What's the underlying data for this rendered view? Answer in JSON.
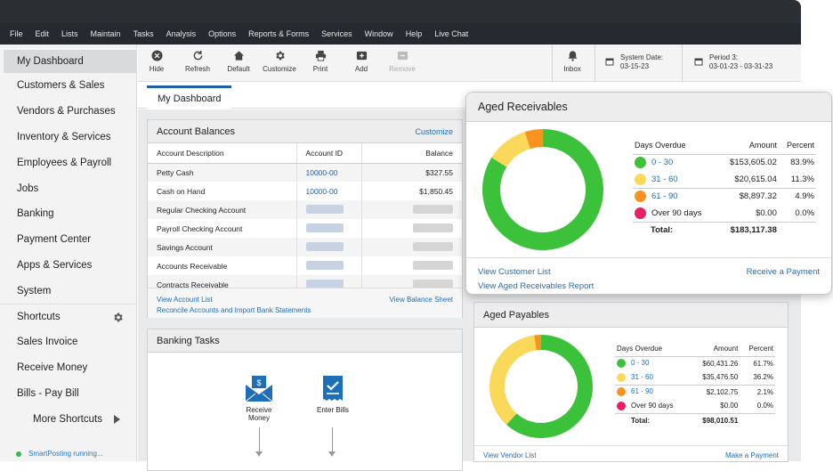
{
  "menu": [
    "File",
    "Edit",
    "Lists",
    "Maintain",
    "Tasks",
    "Analysis",
    "Options",
    "Reports & Forms",
    "Services",
    "Window",
    "Help",
    "Live Chat"
  ],
  "sidebar": {
    "items": [
      "My Dashboard",
      "Customers & Sales",
      "Vendors & Purchases",
      "Inventory & Services",
      "Employees & Payroll",
      "Jobs",
      "Banking",
      "Payment Center",
      "Apps & Services",
      "System"
    ],
    "shortcuts_label": "Shortcuts",
    "shortcuts": [
      "Sales Invoice",
      "Receive Money",
      "Bills - Pay Bill"
    ],
    "more_label": "More Shortcuts",
    "status": "SmartPosting running..."
  },
  "toolbar": {
    "buttons": [
      "Hide",
      "Refresh",
      "Default",
      "Customize",
      "Print",
      "Add",
      "Remove"
    ],
    "inbox": "Inbox",
    "system_date_label": "System Date:",
    "system_date": "03-15-23",
    "period_label": "Period 3:",
    "period": "03-01-23 - 03-31-23"
  },
  "tab": "My Dashboard",
  "account_balances": {
    "title": "Account Balances",
    "customize": "Customize",
    "headers": [
      "Account Description",
      "Account ID",
      "Balance"
    ],
    "rows": [
      {
        "desc": "Petty Cash",
        "id": "10000-00",
        "bal": "$327.55"
      },
      {
        "desc": "Cash on Hand",
        "id": "10000-00",
        "bal": "$1,850.45"
      },
      {
        "desc": "Regular Checking Account",
        "id": "",
        "bal": ""
      },
      {
        "desc": "Payroll Checking Account",
        "id": "",
        "bal": ""
      },
      {
        "desc": "Savings Account",
        "id": "",
        "bal": ""
      },
      {
        "desc": "Accounts Receivable",
        "id": "",
        "bal": ""
      },
      {
        "desc": "Contracts Receivable",
        "id": "",
        "bal": ""
      }
    ],
    "view_list": "View Account List",
    "view_sheet": "View Balance Sheet",
    "reconcile": "Reconcile Accounts and Import Bank Statements"
  },
  "banking_tasks": {
    "title": "Banking Tasks",
    "receive_money": "Receive Money",
    "enter_bills": "Enter Bills"
  },
  "aged_receivables": {
    "title": "Aged Receivables",
    "headers": [
      "Days Overdue",
      "Amount",
      "Percent"
    ],
    "rows": [
      {
        "label": "0 - 30",
        "amount": "$153,605.02",
        "percent": "83.9%",
        "color": "#3cc13b"
      },
      {
        "label": "31 - 60",
        "amount": "$20,615.04",
        "percent": "11.3%",
        "color": "#fad85a"
      },
      {
        "label": "61 - 90",
        "amount": "$8,897.32",
        "percent": "4.9%",
        "color": "#f7931e"
      },
      {
        "label": "Over 90 days",
        "amount": "$0.00",
        "percent": "0.0%",
        "color": "#e91e63"
      }
    ],
    "total_label": "Total:",
    "total": "$183,117.38",
    "view_customer": "View Customer List",
    "view_report": "View Aged Receivables Report",
    "receive_payment": "Receive a Payment"
  },
  "aged_payables": {
    "title": "Aged Payables",
    "headers": [
      "Days Overdue",
      "Amount",
      "Percent"
    ],
    "rows": [
      {
        "label": "0 - 30",
        "amount": "$60,431.26",
        "percent": "61.7%",
        "color": "#3cc13b"
      },
      {
        "label": "31 - 60",
        "amount": "$35,476.50",
        "percent": "36.2%",
        "color": "#fad85a"
      },
      {
        "label": "61 - 90",
        "amount": "$2,102.75",
        "percent": "2.1%",
        "color": "#f7931e"
      },
      {
        "label": "Over 90 days",
        "amount": "$0.00",
        "percent": "0.0%",
        "color": "#e91e63"
      }
    ],
    "total_label": "Total:",
    "total": "$98,010.51",
    "view_vendor": "View Vendor List",
    "make_payment": "Make a Payment"
  }
}
